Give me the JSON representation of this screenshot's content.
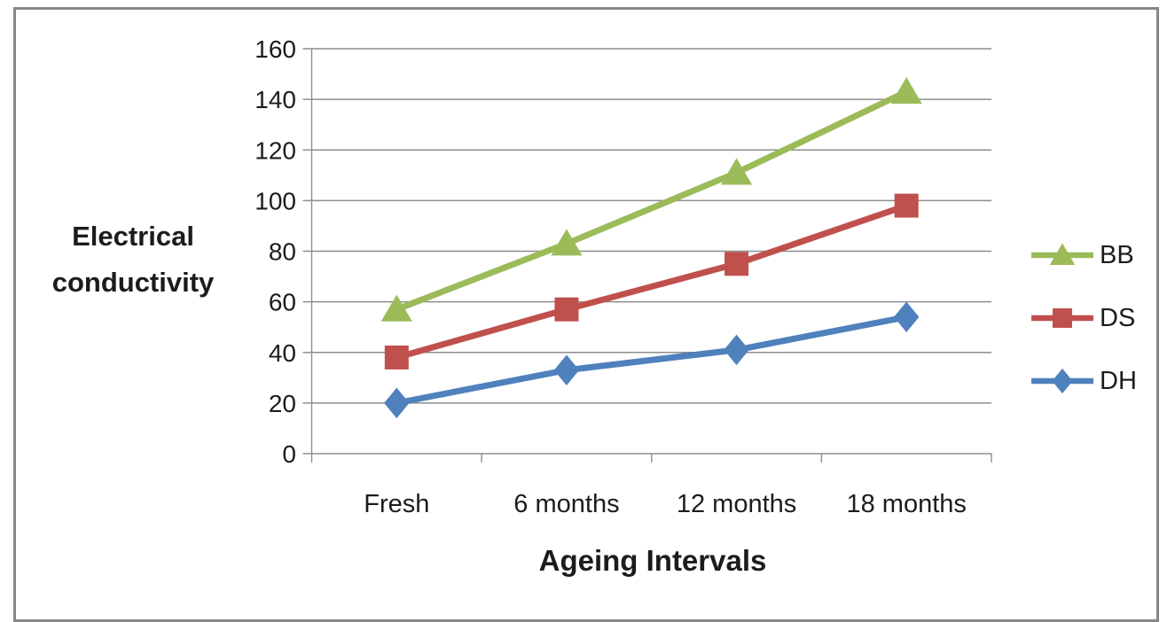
{
  "figure": {
    "border_color": "#878787",
    "background_color": "#ffffff"
  },
  "chart_data": {
    "type": "line",
    "title": "",
    "xlabel": "Ageing Intervals",
    "ylabel": "Electrical conductivity",
    "categories": [
      "Fresh",
      "6 months",
      "12 months",
      "18 months"
    ],
    "series": [
      {
        "name": "BB",
        "marker": "triangle",
        "color": "#9BBB59",
        "values": [
          57,
          83,
          111,
          143
        ]
      },
      {
        "name": "DS",
        "marker": "square",
        "color": "#C0504D",
        "values": [
          38,
          57,
          75,
          98
        ]
      },
      {
        "name": "DH",
        "marker": "diamond",
        "color": "#4F81BD",
        "values": [
          20,
          33,
          41,
          54
        ]
      }
    ],
    "y_axis": {
      "min": 0,
      "max": 160,
      "step": 20
    },
    "y_tick_labels": [
      "0",
      "20",
      "40",
      "60",
      "80",
      "100",
      "120",
      "140",
      "160"
    ],
    "grid": true,
    "legend": {
      "position": "right",
      "entries": [
        "BB",
        "DS",
        "DH"
      ]
    },
    "colors": {
      "gridline": "#8E8E8E",
      "axis": "#8E8E8E",
      "text": "#1c1c1c"
    }
  }
}
